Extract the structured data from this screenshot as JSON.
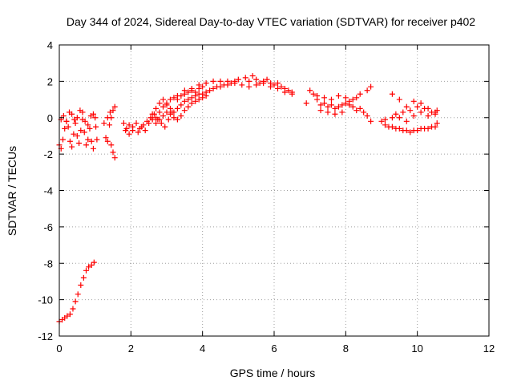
{
  "chart_data": {
    "type": "scatter",
    "title": "Day 344 of 2024, Sidereal Day-to-day VTEC variation (SDTVAR) for receiver p402",
    "xlabel": "GPS time / hours",
    "ylabel": "SDTVAR / TECUs",
    "xlim": [
      0,
      12
    ],
    "ylim": [
      -12,
      4
    ],
    "x_ticks": [
      0,
      2,
      4,
      6,
      8,
      10,
      12
    ],
    "y_ticks": [
      4,
      2,
      0,
      -2,
      -4,
      -6,
      -8,
      -10,
      -12
    ],
    "grid": true,
    "marker": "plus",
    "series_color": "#ff0000",
    "series": [
      {
        "name": "p402",
        "points": [
          [
            0.0,
            -11.2
          ],
          [
            0.08,
            -11.1
          ],
          [
            0.15,
            -11.0
          ],
          [
            0.22,
            -10.9
          ],
          [
            0.3,
            -10.8
          ],
          [
            0.38,
            -10.5
          ],
          [
            0.45,
            -10.1
          ],
          [
            0.52,
            -9.7
          ],
          [
            0.6,
            -9.2
          ],
          [
            0.68,
            -8.8
          ],
          [
            0.75,
            -8.4
          ],
          [
            0.82,
            -8.2
          ],
          [
            0.9,
            -8.1
          ],
          [
            0.97,
            -7.95
          ],
          [
            0.0,
            -1.5
          ],
          [
            0.05,
            -1.7
          ],
          [
            0.1,
            -1.2
          ],
          [
            0.15,
            -0.6
          ],
          [
            0.2,
            -0.2
          ],
          [
            0.25,
            -0.5
          ],
          [
            0.3,
            -1.3
          ],
          [
            0.35,
            -1.6
          ],
          [
            0.4,
            -0.9
          ],
          [
            0.45,
            -0.3
          ],
          [
            0.5,
            -1.0
          ],
          [
            0.55,
            -1.4
          ],
          [
            0.6,
            -0.7
          ],
          [
            0.65,
            -0.1
          ],
          [
            0.7,
            -0.8
          ],
          [
            0.75,
            -1.5
          ],
          [
            0.8,
            -1.2
          ],
          [
            0.85,
            -0.6
          ],
          [
            0.9,
            -1.3
          ],
          [
            0.95,
            -1.7
          ],
          [
            0.05,
            -0.1
          ],
          [
            0.12,
            0.1
          ],
          [
            0.2,
            -0.2
          ],
          [
            0.28,
            0.3
          ],
          [
            0.35,
            0.2
          ],
          [
            0.42,
            -0.1
          ],
          [
            0.5,
            0.0
          ],
          [
            0.58,
            0.4
          ],
          [
            0.65,
            0.3
          ],
          [
            0.72,
            -0.2
          ],
          [
            0.8,
            -0.4
          ],
          [
            0.88,
            0.1
          ],
          [
            0.95,
            0.2
          ],
          [
            1.0,
            0.0
          ],
          [
            1.02,
            -0.5
          ],
          [
            1.05,
            -1.2
          ],
          [
            1.25,
            -0.3
          ],
          [
            1.3,
            -1.1
          ],
          [
            1.35,
            -1.3
          ],
          [
            1.4,
            -0.4
          ],
          [
            1.45,
            0.0
          ],
          [
            1.5,
            0.4
          ],
          [
            1.55,
            0.6
          ],
          [
            1.45,
            -1.5
          ],
          [
            1.5,
            -1.9
          ],
          [
            1.55,
            -2.2
          ],
          [
            1.35,
            0.0
          ],
          [
            1.42,
            0.3
          ],
          [
            1.8,
            -0.3
          ],
          [
            1.88,
            -0.6
          ],
          [
            1.95,
            -0.9
          ],
          [
            2.05,
            -0.5
          ],
          [
            2.15,
            -0.3
          ],
          [
            2.25,
            -0.6
          ],
          [
            2.35,
            -0.4
          ],
          [
            2.45,
            -0.2
          ],
          [
            2.55,
            0.0
          ],
          [
            2.65,
            0.2
          ],
          [
            2.75,
            -0.1
          ],
          [
            2.85,
            -0.3
          ],
          [
            2.95,
            -0.5
          ],
          [
            3.05,
            -0.1
          ],
          [
            3.15,
            0.3
          ],
          [
            1.85,
            -0.7
          ],
          [
            1.95,
            -0.4
          ],
          [
            2.05,
            -0.7
          ],
          [
            2.2,
            -0.8
          ],
          [
            2.3,
            -0.5
          ],
          [
            2.4,
            -0.7
          ],
          [
            2.5,
            -0.3
          ],
          [
            2.6,
            -0.1
          ],
          [
            2.7,
            0.0
          ],
          [
            2.8,
            0.3
          ],
          [
            2.9,
            0.6
          ],
          [
            3.0,
            0.8
          ],
          [
            3.1,
            1.0
          ],
          [
            3.2,
            1.1
          ],
          [
            3.3,
            1.0
          ],
          [
            3.4,
            1.2
          ],
          [
            3.5,
            1.3
          ],
          [
            3.6,
            1.4
          ],
          [
            3.7,
            1.5
          ],
          [
            3.8,
            1.4
          ],
          [
            3.9,
            1.6
          ],
          [
            4.0,
            1.7
          ],
          [
            2.6,
            0.2
          ],
          [
            2.7,
            0.5
          ],
          [
            2.8,
            0.8
          ],
          [
            2.9,
            1.0
          ],
          [
            3.0,
            0.7
          ],
          [
            3.1,
            0.5
          ],
          [
            3.2,
            0.3
          ],
          [
            3.3,
            0.5
          ],
          [
            3.4,
            0.7
          ],
          [
            3.5,
            0.9
          ],
          [
            3.6,
            1.0
          ],
          [
            3.7,
            1.1
          ],
          [
            3.8,
            1.2
          ],
          [
            3.9,
            1.3
          ],
          [
            4.0,
            1.3
          ],
          [
            4.1,
            1.4
          ],
          [
            4.2,
            1.5
          ],
          [
            4.3,
            1.6
          ],
          [
            4.4,
            1.7
          ],
          [
            4.5,
            1.7
          ],
          [
            4.6,
            1.8
          ],
          [
            4.7,
            1.8
          ],
          [
            4.8,
            1.9
          ],
          [
            4.9,
            1.9
          ],
          [
            2.7,
            -0.3
          ],
          [
            2.8,
            -0.1
          ],
          [
            2.9,
            0.1
          ],
          [
            3.0,
            0.3
          ],
          [
            3.1,
            0.2
          ],
          [
            3.2,
            0.0
          ],
          [
            3.3,
            -0.1
          ],
          [
            3.4,
            0.1
          ],
          [
            3.5,
            0.4
          ],
          [
            3.6,
            0.6
          ],
          [
            3.7,
            0.8
          ],
          [
            3.8,
            0.9
          ],
          [
            3.9,
            1.0
          ],
          [
            4.0,
            1.1
          ],
          [
            4.1,
            1.2
          ],
          [
            3.3,
            1.2
          ],
          [
            3.5,
            1.5
          ],
          [
            3.7,
            1.6
          ],
          [
            3.9,
            1.8
          ],
          [
            4.1,
            1.9
          ],
          [
            4.3,
            2.0
          ],
          [
            4.5,
            2.0
          ],
          [
            4.7,
            2.0
          ],
          [
            4.9,
            2.0
          ],
          [
            5.0,
            2.1
          ],
          [
            5.2,
            2.2
          ],
          [
            5.3,
            2.0
          ],
          [
            5.4,
            2.3
          ],
          [
            5.5,
            2.1
          ],
          [
            5.6,
            1.9
          ],
          [
            5.7,
            2.0
          ],
          [
            5.8,
            2.1
          ],
          [
            5.9,
            1.9
          ],
          [
            6.0,
            1.8
          ],
          [
            6.1,
            1.9
          ],
          [
            6.2,
            1.7
          ],
          [
            6.3,
            1.6
          ],
          [
            6.4,
            1.5
          ],
          [
            6.5,
            1.4
          ],
          [
            5.3,
            1.7
          ],
          [
            5.5,
            1.8
          ],
          [
            5.7,
            1.9
          ],
          [
            5.9,
            1.7
          ],
          [
            6.1,
            1.6
          ],
          [
            6.3,
            1.4
          ],
          [
            6.5,
            1.3
          ],
          [
            5.1,
            1.8
          ],
          [
            7.0,
            1.5
          ],
          [
            6.9,
            0.8
          ],
          [
            7.1,
            1.3
          ],
          [
            7.2,
            1.0
          ],
          [
            7.3,
            0.7
          ],
          [
            7.4,
            0.8
          ],
          [
            7.5,
            0.6
          ],
          [
            7.6,
            0.7
          ],
          [
            7.7,
            0.5
          ],
          [
            7.8,
            0.6
          ],
          [
            7.9,
            0.7
          ],
          [
            8.0,
            0.8
          ],
          [
            8.1,
            0.7
          ],
          [
            8.2,
            0.6
          ],
          [
            8.3,
            0.4
          ],
          [
            8.4,
            0.5
          ],
          [
            8.5,
            0.3
          ],
          [
            8.6,
            0.1
          ],
          [
            8.7,
            -0.2
          ],
          [
            7.2,
            1.2
          ],
          [
            7.4,
            1.1
          ],
          [
            7.6,
            1.0
          ],
          [
            7.8,
            1.2
          ],
          [
            8.0,
            1.1
          ],
          [
            8.2,
            1.0
          ],
          [
            8.4,
            1.3
          ],
          [
            8.6,
            1.5
          ],
          [
            8.7,
            1.7
          ],
          [
            7.3,
            0.4
          ],
          [
            7.5,
            0.3
          ],
          [
            7.7,
            0.2
          ],
          [
            7.9,
            0.3
          ],
          [
            8.1,
            0.9
          ],
          [
            8.3,
            1.1
          ],
          [
            9.0,
            -0.2
          ],
          [
            9.1,
            -0.4
          ],
          [
            9.2,
            -0.5
          ],
          [
            9.3,
            -0.5
          ],
          [
            9.4,
            -0.6
          ],
          [
            9.5,
            -0.6
          ],
          [
            9.6,
            -0.7
          ],
          [
            9.7,
            -0.7
          ],
          [
            9.8,
            -0.8
          ],
          [
            9.9,
            -0.7
          ],
          [
            10.0,
            -0.7
          ],
          [
            10.1,
            -0.6
          ],
          [
            10.2,
            -0.6
          ],
          [
            10.3,
            -0.6
          ],
          [
            10.4,
            -0.5
          ],
          [
            10.5,
            -0.5
          ],
          [
            10.55,
            -0.3
          ],
          [
            9.1,
            -0.1
          ],
          [
            9.3,
            0.0
          ],
          [
            9.5,
            0.0
          ],
          [
            9.7,
            -0.2
          ],
          [
            9.9,
            0.1
          ],
          [
            10.1,
            0.3
          ],
          [
            10.3,
            0.1
          ],
          [
            10.5,
            0.3
          ],
          [
            10.55,
            0.4
          ],
          [
            9.3,
            1.3
          ],
          [
            9.5,
            1.0
          ],
          [
            9.7,
            0.6
          ],
          [
            9.9,
            0.9
          ],
          [
            10.1,
            0.8
          ],
          [
            10.3,
            0.5
          ],
          [
            10.5,
            0.2
          ],
          [
            9.4,
            0.2
          ],
          [
            9.6,
            0.3
          ],
          [
            9.8,
            0.4
          ],
          [
            10.0,
            0.6
          ],
          [
            10.2,
            0.5
          ],
          [
            10.4,
            0.3
          ]
        ]
      }
    ]
  }
}
